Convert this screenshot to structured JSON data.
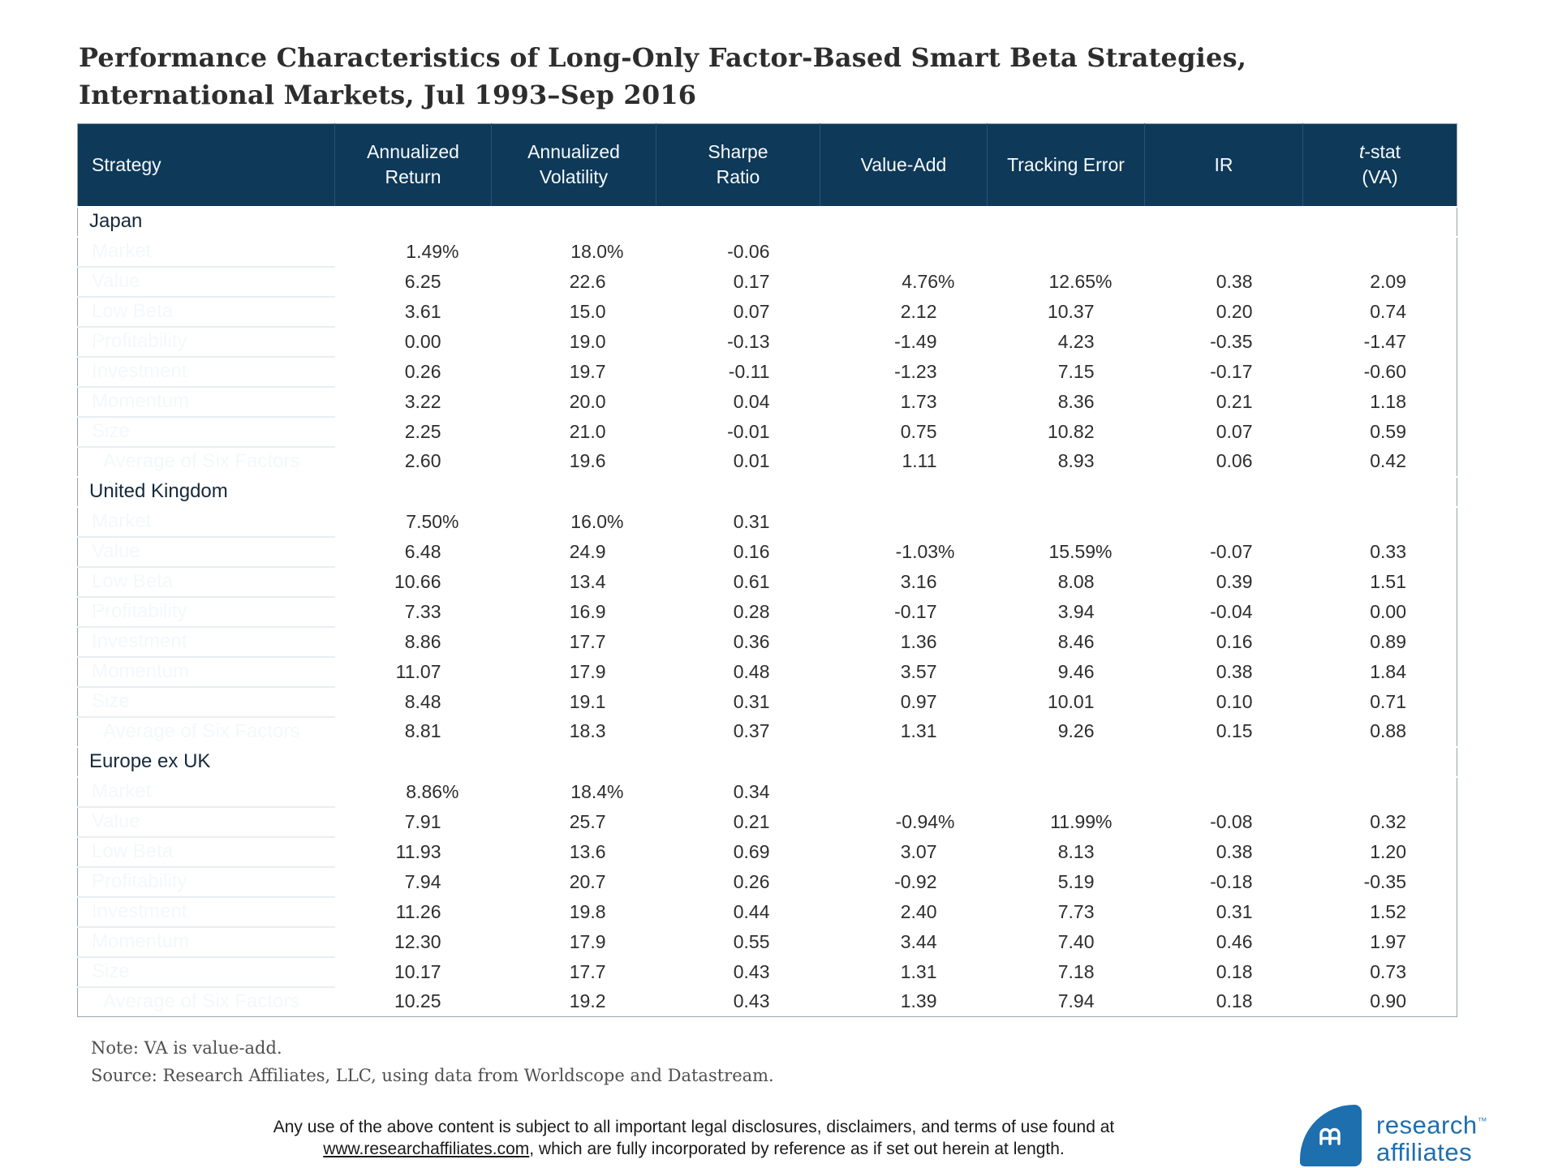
{
  "title": {
    "line1": "Performance Characteristics of Long-Only Factor-Based Smart Beta Strategies,",
    "line2": "International Markets, Jul 1993–Sep 2016"
  },
  "colors": {
    "header_navy": "#0e3959",
    "strategy_navy": "#133d5e",
    "section_blue": "#bfe3f9",
    "brand_blue": "#1e6fae"
  },
  "table": {
    "header": {
      "columns": [
        {
          "lines": [
            "Strategy"
          ]
        },
        {
          "lines": [
            "Annualized",
            "Return"
          ]
        },
        {
          "lines": [
            "Annualized",
            "Volatility"
          ]
        },
        {
          "lines": [
            "Sharpe",
            "Ratio"
          ]
        },
        {
          "lines": [
            "Value-Add"
          ]
        },
        {
          "lines": [
            "Tracking Error"
          ]
        },
        {
          "lines": [
            "IR"
          ]
        },
        {
          "lines": [
            "-stat",
            "(VA)"
          ],
          "italic_prefix": "t"
        }
      ]
    },
    "sections": [
      {
        "name": "Japan",
        "rows": [
          {
            "strategy": "Market",
            "indent": false,
            "values": [
              "1.49%",
              "18.0%",
              "-0.06",
              "",
              "",
              "",
              ""
            ]
          },
          {
            "strategy": "Value",
            "indent": false,
            "values": [
              "6.25",
              "22.6",
              "0.17",
              "4.76%",
              "12.65%",
              "0.38",
              "2.09"
            ]
          },
          {
            "strategy": "Low Beta",
            "indent": false,
            "values": [
              "3.61",
              "15.0",
              "0.07",
              "2.12",
              "10.37",
              "0.20",
              "0.74"
            ]
          },
          {
            "strategy": "Profitability",
            "indent": false,
            "values": [
              "0.00",
              "19.0",
              "-0.13",
              "-1.49",
              "4.23",
              "-0.35",
              "-1.47"
            ]
          },
          {
            "strategy": "Investment",
            "indent": false,
            "values": [
              "0.26",
              "19.7",
              "-0.11",
              "-1.23",
              "7.15",
              "-0.17",
              "-0.60"
            ]
          },
          {
            "strategy": "Momentum",
            "indent": false,
            "values": [
              "3.22",
              "20.0",
              "0.04",
              "1.73",
              "8.36",
              "0.21",
              "1.18"
            ]
          },
          {
            "strategy": "Size",
            "indent": false,
            "values": [
              "2.25",
              "21.0",
              "-0.01",
              "0.75",
              "10.82",
              "0.07",
              "0.59"
            ]
          },
          {
            "strategy": "Average of Six Factors",
            "indent": true,
            "values": [
              "2.60",
              "19.6",
              "0.01",
              "1.11",
              "8.93",
              "0.06",
              "0.42"
            ]
          }
        ]
      },
      {
        "name": "United Kingdom",
        "rows": [
          {
            "strategy": "Market",
            "indent": false,
            "values": [
              "7.50%",
              "16.0%",
              "0.31",
              "",
              "",
              "",
              ""
            ]
          },
          {
            "strategy": "Value",
            "indent": false,
            "values": [
              "6.48",
              "24.9",
              "0.16",
              "-1.03%",
              "15.59%",
              "-0.07",
              "0.33"
            ]
          },
          {
            "strategy": "Low Beta",
            "indent": false,
            "values": [
              "10.66",
              "13.4",
              "0.61",
              "3.16",
              "8.08",
              "0.39",
              "1.51"
            ]
          },
          {
            "strategy": "Profitability",
            "indent": false,
            "values": [
              "7.33",
              "16.9",
              "0.28",
              "-0.17",
              "3.94",
              "-0.04",
              "0.00"
            ]
          },
          {
            "strategy": "Investment",
            "indent": false,
            "values": [
              "8.86",
              "17.7",
              "0.36",
              "1.36",
              "8.46",
              "0.16",
              "0.89"
            ]
          },
          {
            "strategy": "Momentum",
            "indent": false,
            "values": [
              "11.07",
              "17.9",
              "0.48",
              "3.57",
              "9.46",
              "0.38",
              "1.84"
            ]
          },
          {
            "strategy": "Size",
            "indent": false,
            "values": [
              "8.48",
              "19.1",
              "0.31",
              "0.97",
              "10.01",
              "0.10",
              "0.71"
            ]
          },
          {
            "strategy": "Average of Six Factors",
            "indent": true,
            "values": [
              "8.81",
              "18.3",
              "0.37",
              "1.31",
              "9.26",
              "0.15",
              "0.88"
            ]
          }
        ]
      },
      {
        "name": "Europe ex UK",
        "rows": [
          {
            "strategy": "Market",
            "indent": false,
            "values": [
              "8.86%",
              "18.4%",
              "0.34",
              "",
              "",
              "",
              ""
            ]
          },
          {
            "strategy": "Value",
            "indent": false,
            "values": [
              "7.91",
              "25.7",
              "0.21",
              "-0.94%",
              "11.99%",
              "-0.08",
              "0.32"
            ]
          },
          {
            "strategy": "Low Beta",
            "indent": false,
            "values": [
              "11.93",
              "13.6",
              "0.69",
              "3.07",
              "8.13",
              "0.38",
              "1.20"
            ]
          },
          {
            "strategy": "Profitability",
            "indent": false,
            "values": [
              "7.94",
              "20.7",
              "0.26",
              "-0.92",
              "5.19",
              "-0.18",
              "-0.35"
            ]
          },
          {
            "strategy": "Investment",
            "indent": false,
            "values": [
              "11.26",
              "19.8",
              "0.44",
              "2.40",
              "7.73",
              "0.31",
              "1.52"
            ]
          },
          {
            "strategy": "Momentum",
            "indent": false,
            "values": [
              "12.30",
              "17.9",
              "0.55",
              "3.44",
              "7.40",
              "0.46",
              "1.97"
            ]
          },
          {
            "strategy": "Size",
            "indent": false,
            "values": [
              "10.17",
              "17.7",
              "0.43",
              "1.31",
              "7.18",
              "0.18",
              "0.73"
            ]
          },
          {
            "strategy": "Average of Six Factors",
            "indent": true,
            "values": [
              "10.25",
              "19.2",
              "0.43",
              "1.39",
              "7.94",
              "0.18",
              "0.90"
            ]
          }
        ]
      }
    ]
  },
  "notes": {
    "note": "Note: VA is value-add.",
    "source": "Source: Research Affiliates, LLC, using data from Worldscope and Datastream."
  },
  "footer": {
    "line1": "Any use of the above content is subject to all important legal disclosures, disclaimers, and terms of use found at",
    "link": "www.researchaffiliates.com",
    "line2": ", which are fully incorporated by reference as if set out herein at length."
  },
  "logo": {
    "name_line1": "research",
    "trademark": "™",
    "name_line2": "affiliates"
  }
}
